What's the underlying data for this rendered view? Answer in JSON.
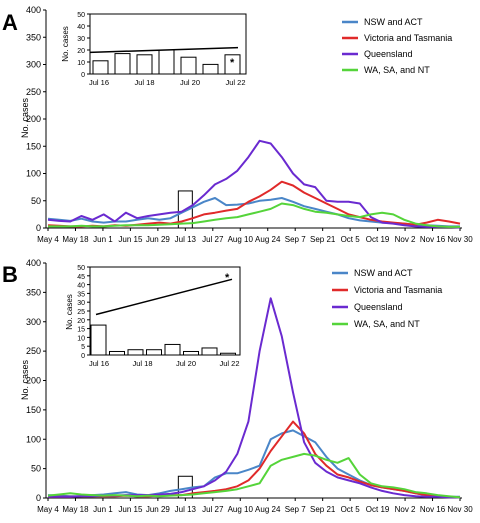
{
  "chart_data": [
    {
      "type": "line",
      "panel_label": "A",
      "title": "",
      "xlabel": "",
      "ylabel": "No. cases",
      "ylim": [
        0,
        400
      ],
      "yticks": [
        0,
        50,
        100,
        150,
        200,
        250,
        300,
        350,
        400
      ],
      "x_tick_labels": [
        "May 4",
        "May 18",
        "Jun 1",
        "Jun 15",
        "Jun 29",
        "Jul 13",
        "Jul 27",
        "Aug 10",
        "Aug 24",
        "Sep 7",
        "Sep 21",
        "Oct 5",
        "Oct 19",
        "Nov 2",
        "Nov 16",
        "Nov 30"
      ],
      "grid": false,
      "legend_position": "top-right",
      "series": [
        {
          "name": "NSW and ACT",
          "color": "#4a86c8",
          "values": [
            17,
            15,
            13,
            17,
            12,
            10,
            12,
            12,
            15,
            18,
            15,
            18,
            28,
            38,
            48,
            55,
            42,
            43,
            45,
            50,
            52,
            55,
            48,
            40,
            35,
            30,
            25,
            18,
            14,
            12,
            10,
            9,
            8,
            6,
            5,
            4,
            3,
            3
          ]
        },
        {
          "name": "Victoria and Tasmania",
          "color": "#e02a2a",
          "values": [
            5,
            4,
            3,
            3,
            4,
            3,
            5,
            4,
            6,
            8,
            10,
            8,
            12,
            18,
            25,
            28,
            32,
            35,
            48,
            58,
            70,
            85,
            78,
            65,
            55,
            45,
            35,
            25,
            20,
            15,
            12,
            10,
            8,
            6,
            10,
            15,
            12,
            8
          ]
        },
        {
          "name": "Queensland",
          "color": "#6a2ad0",
          "values": [
            15,
            13,
            12,
            22,
            15,
            25,
            12,
            28,
            18,
            22,
            25,
            28,
            30,
            42,
            60,
            80,
            90,
            105,
            130,
            160,
            155,
            130,
            100,
            80,
            75,
            50,
            48,
            48,
            45,
            20,
            10,
            8,
            5,
            3,
            2,
            2,
            2,
            1
          ]
        },
        {
          "name": "WA, SA, and NT",
          "color": "#55d43a",
          "values": [
            3,
            3,
            3,
            4,
            3,
            3,
            4,
            5,
            5,
            5,
            6,
            7,
            8,
            9,
            12,
            15,
            18,
            20,
            25,
            30,
            35,
            45,
            42,
            35,
            30,
            28,
            25,
            22,
            20,
            25,
            28,
            25,
            15,
            8,
            5,
            3,
            2,
            2
          ]
        }
      ],
      "highlight_bar": {
        "x_label": "Jul 13",
        "value": 68
      },
      "inset": {
        "type": "bar",
        "ylabel": "No. cases",
        "ylim": [
          0,
          50
        ],
        "yticks": [
          0,
          10,
          20,
          30,
          40,
          50
        ],
        "x_tick_labels": [
          "Jul 16",
          "Jul 18",
          "Jul 20",
          "Jul 22"
        ],
        "values": [
          11,
          17,
          16,
          20,
          14,
          8,
          16
        ],
        "trend_start": 18,
        "trend_end": 22,
        "annotation": "*"
      }
    },
    {
      "type": "line",
      "panel_label": "B",
      "title": "",
      "xlabel": "",
      "ylabel": "No. cases",
      "ylim": [
        0,
        400
      ],
      "yticks": [
        0,
        50,
        100,
        150,
        200,
        250,
        300,
        350,
        400
      ],
      "x_tick_labels": [
        "May 4",
        "May 18",
        "Jun 1",
        "Jun 15",
        "Jun 29",
        "Jul 13",
        "Jul 27",
        "Aug 10",
        "Aug 24",
        "Sep 7",
        "Sep 21",
        "Oct 5",
        "Oct 19",
        "Nov 2",
        "Nov 16",
        "Nov 30"
      ],
      "grid": false,
      "legend_position": "top-right",
      "series": [
        {
          "name": "NSW and ACT",
          "color": "#4a86c8",
          "values": [
            5,
            4,
            3,
            3,
            5,
            6,
            8,
            10,
            6,
            5,
            8,
            12,
            15,
            18,
            20,
            35,
            42,
            42,
            48,
            55,
            100,
            110,
            115,
            105,
            95,
            70,
            50,
            40,
            30,
            22,
            18,
            15,
            12,
            8,
            5,
            3,
            2,
            2
          ]
        },
        {
          "name": "Victoria and Tasmania",
          "color": "#e02a2a",
          "values": [
            2,
            2,
            2,
            3,
            3,
            3,
            3,
            4,
            3,
            3,
            4,
            5,
            5,
            8,
            10,
            12,
            15,
            20,
            30,
            50,
            80,
            105,
            130,
            110,
            75,
            55,
            40,
            35,
            28,
            22,
            18,
            15,
            12,
            8,
            5,
            3,
            2,
            1
          ]
        },
        {
          "name": "Queensland",
          "color": "#6a2ad0",
          "values": [
            2,
            2,
            2,
            3,
            3,
            4,
            4,
            5,
            5,
            5,
            6,
            7,
            10,
            15,
            20,
            30,
            45,
            75,
            130,
            250,
            340,
            275,
            180,
            95,
            60,
            45,
            35,
            30,
            25,
            18,
            12,
            8,
            5,
            3,
            2,
            2,
            1,
            1
          ]
        },
        {
          "name": "WA, SA, and NT",
          "color": "#55d43a",
          "values": [
            4,
            6,
            8,
            6,
            5,
            4,
            5,
            4,
            3,
            4,
            3,
            4,
            5,
            6,
            8,
            10,
            12,
            15,
            20,
            25,
            55,
            65,
            70,
            75,
            72,
            65,
            60,
            68,
            40,
            25,
            20,
            18,
            15,
            10,
            8,
            5,
            3,
            1
          ]
        }
      ],
      "highlight_bar": {
        "x_label": "Jul 13",
        "value": 37
      },
      "inset": {
        "type": "bar",
        "ylabel": "No. cases",
        "ylim": [
          0,
          50
        ],
        "yticks": [
          0,
          5,
          10,
          15,
          20,
          25,
          30,
          35,
          40,
          45,
          50
        ],
        "x_tick_labels": [
          "Jul 16",
          "Jul 18",
          "Jul 20",
          "Jul 22"
        ],
        "values": [
          17,
          2,
          3,
          3,
          6,
          2,
          4,
          1
        ],
        "trend_start": 23,
        "trend_end": 43,
        "annotation": "*"
      }
    }
  ]
}
